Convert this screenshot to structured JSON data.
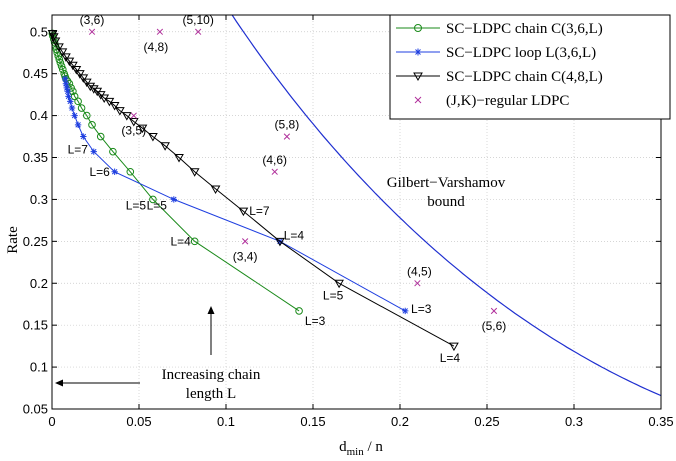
{
  "chart_data": {
    "type": "line",
    "xlabel": "d_min / n",
    "xlabel_main": "d",
    "xlabel_sub": "min",
    "xlabel_rest": " / n",
    "ylabel": "Rate",
    "xlim": [
      0,
      0.35
    ],
    "ylim": [
      0.05,
      0.52
    ],
    "x_ticks": [
      0,
      0.05,
      0.1,
      0.15,
      0.2,
      0.25,
      0.3,
      0.35
    ],
    "x_tick_labels": [
      "0",
      "0.05",
      "0.1",
      "0.15",
      "0.2",
      "0.25",
      "0.3",
      "0.35"
    ],
    "y_ticks": [
      0.05,
      0.1,
      0.15,
      0.2,
      0.25,
      0.3,
      0.35,
      0.4,
      0.45,
      0.5
    ],
    "y_tick_labels": [
      "0.05",
      "0.1",
      "0.15",
      "0.2",
      "0.25",
      "0.3",
      "0.35",
      "0.4",
      "0.45",
      "0.5"
    ],
    "grid": true,
    "legend_position": "top-right",
    "series": [
      {
        "name": "SC−LDPC chain C(3,6,L)",
        "color": "#1a8a1a",
        "marker": "circle",
        "points": [
          [
            0.142,
            0.167
          ],
          [
            0.082,
            0.25
          ],
          [
            0.058,
            0.3
          ],
          [
            0.045,
            0.333
          ],
          [
            0.035,
            0.357
          ],
          [
            0.028,
            0.375
          ],
          [
            0.023,
            0.389
          ],
          [
            0.02,
            0.4
          ],
          [
            0.017,
            0.409
          ],
          [
            0.015,
            0.417
          ],
          [
            0.013,
            0.423
          ],
          [
            0.012,
            0.429
          ],
          [
            0.011,
            0.433
          ],
          [
            0.01,
            0.438
          ],
          [
            0.009,
            0.441
          ],
          [
            0.008,
            0.444
          ],
          [
            0.0075,
            0.447
          ],
          [
            0.007,
            0.45
          ],
          [
            0.0062,
            0.455
          ],
          [
            0.0055,
            0.459
          ],
          [
            0.0048,
            0.463
          ],
          [
            0.0042,
            0.467
          ],
          [
            0.0036,
            0.471
          ],
          [
            0.003,
            0.475
          ],
          [
            0.0025,
            0.479
          ],
          [
            0.002,
            0.483
          ],
          [
            0.0015,
            0.487
          ],
          [
            0.001,
            0.491
          ],
          [
            0.0005,
            0.495
          ],
          [
            0.0002,
            0.498
          ]
        ]
      },
      {
        "name": "SC−LDPC loop L(3,6,L)",
        "color": "#1f3fe0",
        "marker": "star",
        "points": [
          [
            0.203,
            0.167
          ],
          [
            0.131,
            0.25
          ],
          [
            0.07,
            0.3
          ],
          [
            0.036,
            0.333
          ],
          [
            0.024,
            0.357
          ],
          [
            0.018,
            0.375
          ],
          [
            0.015,
            0.389
          ],
          [
            0.013,
            0.4
          ],
          [
            0.0115,
            0.409
          ],
          [
            0.0105,
            0.417
          ],
          [
            0.0095,
            0.423
          ],
          [
            0.009,
            0.429
          ],
          [
            0.0085,
            0.433
          ],
          [
            0.008,
            0.438
          ],
          [
            0.0075,
            0.444
          ]
        ]
      },
      {
        "name": "SC−LDPC chain C(4,8,L)",
        "color": "#000000",
        "marker": "triangle",
        "points": [
          [
            0.231,
            0.125
          ],
          [
            0.165,
            0.2
          ],
          [
            0.131,
            0.25
          ],
          [
            0.11,
            0.286
          ],
          [
            0.094,
            0.3125
          ],
          [
            0.082,
            0.333
          ],
          [
            0.073,
            0.35
          ],
          [
            0.065,
            0.364
          ],
          [
            0.058,
            0.375
          ],
          [
            0.052,
            0.385
          ],
          [
            0.047,
            0.393
          ],
          [
            0.043,
            0.4
          ],
          [
            0.039,
            0.406
          ],
          [
            0.036,
            0.412
          ],
          [
            0.033,
            0.417
          ],
          [
            0.03,
            0.421
          ],
          [
            0.028,
            0.425
          ],
          [
            0.026,
            0.429
          ],
          [
            0.024,
            0.432
          ],
          [
            0.022,
            0.435
          ],
          [
            0.02,
            0.44
          ],
          [
            0.018,
            0.445
          ],
          [
            0.016,
            0.45
          ],
          [
            0.014,
            0.455
          ],
          [
            0.012,
            0.46
          ],
          [
            0.01,
            0.465
          ],
          [
            0.008,
            0.47
          ],
          [
            0.006,
            0.476
          ],
          [
            0.004,
            0.482
          ],
          [
            0.002,
            0.489
          ],
          [
            0.001,
            0.494
          ],
          [
            0.0003,
            0.498
          ]
        ]
      },
      {
        "name": "(J,K)−regular LDPC",
        "color": "#b0309b",
        "marker": "x",
        "points": [
          {
            "x": 0.023,
            "y": 0.5,
            "label": "(3,6)"
          },
          {
            "x": 0.062,
            "y": 0.5,
            "label": "(4,8)"
          },
          {
            "x": 0.084,
            "y": 0.5,
            "label": "(5,10)"
          },
          {
            "x": 0.047,
            "y": 0.4,
            "label": "(3,5)"
          },
          {
            "x": 0.135,
            "y": 0.375,
            "label": "(5,8)"
          },
          {
            "x": 0.128,
            "y": 0.333,
            "label": "(4,6)"
          },
          {
            "x": 0.111,
            "y": 0.25,
            "label": "(3,4)"
          },
          {
            "x": 0.21,
            "y": 0.2,
            "label": "(4,5)"
          },
          {
            "x": 0.254,
            "y": 0.167,
            "label": "(5,6)"
          }
        ]
      }
    ],
    "gv_bound": {
      "color": "#1f2fd0",
      "label_line1": "Gilbert−Varshamov",
      "label_line2": "bound"
    },
    "annotations": [
      {
        "text": "L=3",
        "x": 0.142,
        "y": 0.167,
        "series": "green"
      },
      {
        "text": "L=4",
        "x": 0.082,
        "y": 0.25,
        "series": "green"
      },
      {
        "text": "L=5",
        "x": 0.058,
        "y": 0.3,
        "series": "green"
      },
      {
        "text": "L=6",
        "x": 0.036,
        "y": 0.333,
        "series": "blue"
      },
      {
        "text": "L=7",
        "x": 0.024,
        "y": 0.357,
        "series": "blue"
      },
      {
        "text": "L=5",
        "x": 0.07,
        "y": 0.3,
        "series": "blue"
      },
      {
        "text": "L=4",
        "x": 0.131,
        "y": 0.25,
        "series": "blue"
      },
      {
        "text": "L=3",
        "x": 0.203,
        "y": 0.167,
        "series": "blue"
      },
      {
        "text": "L=7",
        "x": 0.11,
        "y": 0.286,
        "series": "black"
      },
      {
        "text": "L=5",
        "x": 0.165,
        "y": 0.2,
        "series": "black"
      },
      {
        "text": "L=4",
        "x": 0.231,
        "y": 0.125,
        "series": "black"
      }
    ],
    "arrow_text_line1": "Increasing chain",
    "arrow_text_line2": "length L"
  }
}
